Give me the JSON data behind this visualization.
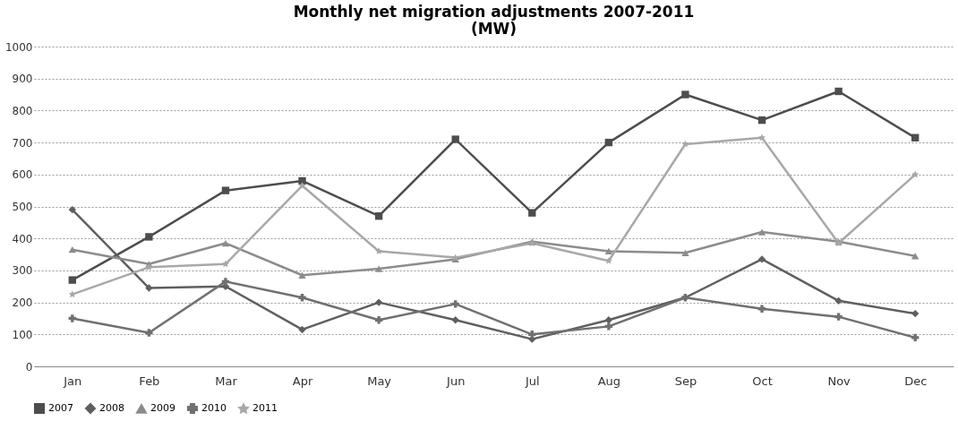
{
  "chart_data": {
    "type": "line",
    "title": [
      "Monthly net migration adjustments 2007-2011",
      "(MW)"
    ],
    "categories": [
      "Jan",
      "Feb",
      "Mar",
      "Apr",
      "May",
      "Jun",
      "Jul",
      "Aug",
      "Sep",
      "Oct",
      "Nov",
      "Dec"
    ],
    "series": [
      {
        "name": "2007",
        "color": "#4d4d4d",
        "marker": "square",
        "values": [
          270,
          405,
          550,
          580,
          470,
          710,
          480,
          700,
          850,
          770,
          860,
          715
        ]
      },
      {
        "name": "2008",
        "color": "#5f5f5f",
        "marker": "diamond",
        "values": [
          490,
          245,
          250,
          115,
          200,
          145,
          85,
          145,
          215,
          335,
          205,
          165
        ]
      },
      {
        "name": "2009",
        "color": "#8c8c8c",
        "marker": "triangle",
        "values": [
          365,
          320,
          385,
          285,
          305,
          335,
          390,
          360,
          355,
          420,
          390,
          345
        ]
      },
      {
        "name": "2010",
        "color": "#707070",
        "marker": "cross",
        "values": [
          150,
          105,
          265,
          215,
          145,
          195,
          100,
          125,
          215,
          180,
          155,
          90
        ]
      },
      {
        "name": "2011",
        "color": "#a8a8a8",
        "marker": "star",
        "values": [
          225,
          310,
          320,
          565,
          360,
          340,
          385,
          330,
          695,
          715,
          385,
          600
        ]
      }
    ],
    "ylim": [
      0,
      1000
    ],
    "yticks": [
      0,
      100,
      200,
      300,
      400,
      500,
      600,
      700,
      800,
      900,
      1000
    ],
    "grid": "y",
    "legend": "bottom",
    "line_style": "solid"
  }
}
